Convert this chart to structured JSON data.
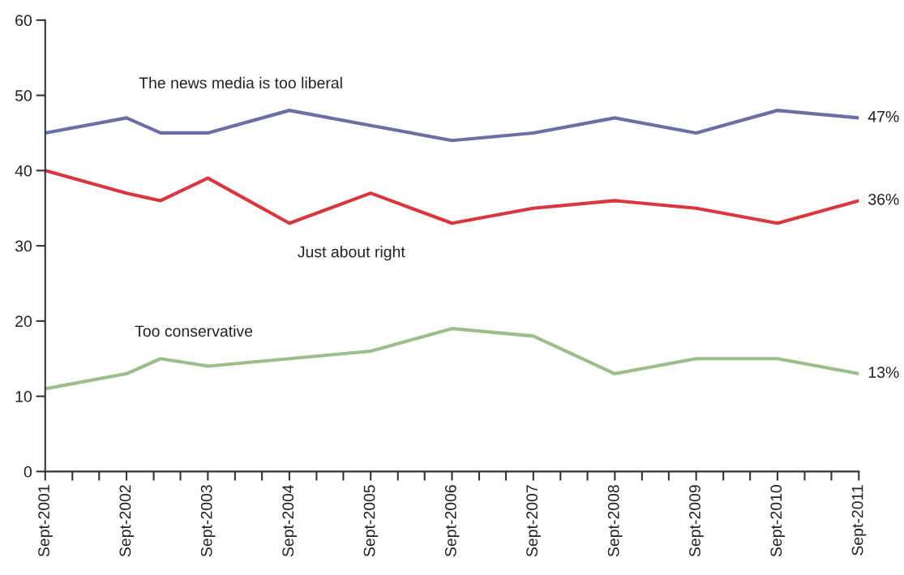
{
  "chart_data": {
    "type": "line",
    "x": [
      "2001-09",
      "2002-09",
      "2003-02",
      "2003-09",
      "2004-09",
      "2005-09",
      "2006-09",
      "2007-09",
      "2008-09",
      "2009-09",
      "2010-09",
      "2011-09"
    ],
    "series": [
      {
        "name": "The news media is too liberal",
        "color": "#6b6fa3",
        "values": [
          45,
          47,
          45,
          45,
          48,
          46,
          44,
          45,
          47,
          45,
          48,
          47
        ]
      },
      {
        "name": "Just about right",
        "color": "#d9363e",
        "values": [
          40,
          37,
          36,
          39,
          33,
          37,
          33,
          35,
          36,
          35,
          33,
          36
        ]
      },
      {
        "name": "Too conservative",
        "color": "#9dbd8a",
        "values": [
          11,
          13,
          15,
          14,
          15,
          16,
          19,
          18,
          13,
          15,
          15,
          13
        ]
      }
    ],
    "annotations": [
      {
        "text": "47%",
        "x": "2011-09",
        "y": 47
      },
      {
        "text": "36%",
        "x": "2011-09",
        "y": 36
      },
      {
        "text": "13%",
        "x": "2011-09",
        "y": 13
      }
    ],
    "xlim": [
      "2001-09",
      "2011-09"
    ],
    "xticks": [
      {
        "value": "2001-09",
        "label": "Sept-2001"
      },
      {
        "value": "2002-01",
        "label": null
      },
      {
        "value": "2002-05",
        "label": null
      },
      {
        "value": "2002-09",
        "label": "Sept-2002"
      },
      {
        "value": "2003-01",
        "label": null
      },
      {
        "value": "2003-05",
        "label": null
      },
      {
        "value": "2003-09",
        "label": "Sept-2003"
      },
      {
        "value": "2004-01",
        "label": null
      },
      {
        "value": "2004-05",
        "label": null
      },
      {
        "value": "2004-09",
        "label": "Sept-2004"
      },
      {
        "value": "2005-01",
        "label": null
      },
      {
        "value": "2005-05",
        "label": null
      },
      {
        "value": "2005-09",
        "label": "Sept-2005"
      },
      {
        "value": "2006-01",
        "label": null
      },
      {
        "value": "2006-05",
        "label": null
      },
      {
        "value": "2006-09",
        "label": "Sept-2006"
      },
      {
        "value": "2007-01",
        "label": null
      },
      {
        "value": "2007-05",
        "label": null
      },
      {
        "value": "2007-09",
        "label": "Sept-2007"
      },
      {
        "value": "2008-01",
        "label": null
      },
      {
        "value": "2008-05",
        "label": null
      },
      {
        "value": "2008-09",
        "label": "Sept-2008"
      },
      {
        "value": "2009-01",
        "label": null
      },
      {
        "value": "2009-05",
        "label": null
      },
      {
        "value": "2009-09",
        "label": "Sept-2009"
      },
      {
        "value": "2010-01",
        "label": null
      },
      {
        "value": "2010-05",
        "label": null
      },
      {
        "value": "2010-09",
        "label": "Sept-2010"
      },
      {
        "value": "2011-01",
        "label": null
      },
      {
        "value": "2011-05",
        "label": null
      },
      {
        "value": "2011-09",
        "label": "Sept-2011"
      }
    ],
    "ylim": [
      0,
      60
    ],
    "yticks": [
      0,
      10,
      20,
      30,
      40,
      50,
      60
    ],
    "grid": false,
    "legend": false,
    "marker": "none",
    "line_style": "solid"
  }
}
